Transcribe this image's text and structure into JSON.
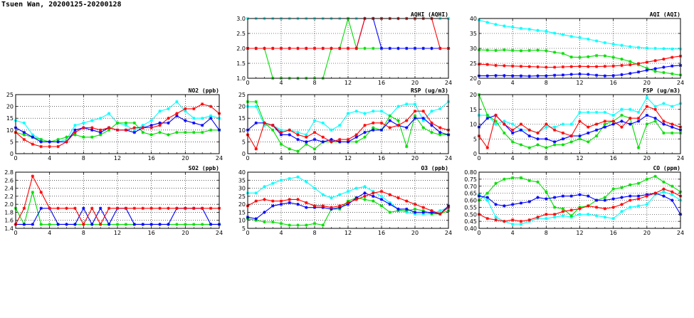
{
  "page": {
    "title": "Tsuen Wan, 20200125-20200128"
  },
  "colors": {
    "red": "#ff0000",
    "green": "#00dd00",
    "blue": "#0000ff",
    "cyan": "#00ffff"
  },
  "chart_data": [
    {
      "id": "aqhi",
      "type": "line",
      "title": "AQHI (AQHI)",
      "ylim": [
        1.0,
        3.0
      ],
      "yticks": [
        "1.0",
        "1.5",
        "2.0",
        "2.5",
        "3.0"
      ],
      "xticks": [
        "0",
        "4",
        "8",
        "12",
        "16",
        "20",
        "24"
      ],
      "grid": true,
      "series": [
        {
          "color": "#00ffff",
          "values": [
            3,
            3,
            3,
            3,
            3,
            3,
            3,
            3,
            3,
            3,
            3,
            3,
            3,
            3,
            3,
            3,
            3,
            3,
            3,
            3,
            3,
            3,
            3,
            3,
            3
          ]
        },
        {
          "color": "#00dd00",
          "values": [
            2,
            2,
            2,
            1,
            1,
            1,
            1,
            1,
            1,
            1,
            2,
            2,
            3,
            2,
            2,
            2,
            2,
            2,
            2,
            2,
            2,
            2,
            2,
            2,
            2
          ]
        },
        {
          "color": "#0000ff",
          "values": [
            2,
            2,
            2,
            2,
            2,
            2,
            2,
            2,
            2,
            2,
            2,
            2,
            2,
            2,
            3,
            3,
            2,
            2,
            2,
            2,
            2,
            2,
            2,
            2,
            2
          ]
        },
        {
          "color": "#ff0000",
          "values": [
            2,
            2,
            2,
            2,
            2,
            2,
            2,
            2,
            2,
            2,
            2,
            2,
            2,
            2,
            3,
            3,
            3,
            3,
            3,
            3,
            3,
            3,
            3,
            2,
            2
          ]
        }
      ]
    },
    {
      "id": "aqi",
      "type": "line",
      "title": "AQI (AQI)",
      "ylim": [
        20,
        40
      ],
      "yticks": [
        "20",
        "25",
        "30",
        "35",
        "40"
      ],
      "xticks": [
        "0",
        "4",
        "8",
        "12",
        "16",
        "20",
        "24"
      ],
      "grid": true,
      "series": [
        {
          "color": "#00ffff",
          "values": [
            39.5,
            38.7,
            38,
            37.5,
            37.1,
            36.7,
            36.4,
            36,
            35.7,
            35.1,
            34.6,
            34,
            33.6,
            33.1,
            32.5,
            31.9,
            31.4,
            31,
            30.6,
            30.3,
            30.1,
            30,
            29.9,
            29.8,
            29.8
          ]
        },
        {
          "color": "#00dd00",
          "values": [
            29.5,
            29.4,
            29.3,
            29.5,
            29.3,
            29.2,
            29.3,
            29.4,
            29.2,
            28.7,
            28.3,
            27.1,
            27,
            27.2,
            27.6,
            27.5,
            27,
            26.4,
            25.6,
            24.5,
            23.4,
            22.3,
            21.9,
            21.5,
            21.1
          ]
        },
        {
          "color": "#0000ff",
          "values": [
            20.8,
            20.8,
            20.9,
            20.9,
            20.8,
            20.8,
            20.7,
            20.8,
            20.8,
            21,
            21.1,
            21.3,
            21.4,
            21.3,
            21,
            20.8,
            20.9,
            21.2,
            21.6,
            22.1,
            22.7,
            23.2,
            23.7,
            24.1,
            24.3
          ]
        },
        {
          "color": "#ff0000",
          "values": [
            24.7,
            24.6,
            24.3,
            24.2,
            24.1,
            24,
            23.9,
            23.8,
            23.7,
            23.7,
            23.8,
            23.9,
            24,
            23.9,
            23.9,
            24,
            24.1,
            24.3,
            24.5,
            24.9,
            25.4,
            25.9,
            26.4,
            27,
            27.4
          ]
        }
      ]
    },
    {
      "id": "no2",
      "type": "line",
      "title": "NO2 (ppb)",
      "ylim": [
        0,
        25
      ],
      "yticks": [
        "0",
        "5",
        "10",
        "15",
        "20",
        "25"
      ],
      "xticks": [
        "0",
        "4",
        "8",
        "12",
        "16",
        "20",
        "24"
      ],
      "grid": true,
      "series": [
        {
          "color": "#00ffff",
          "values": [
            14,
            13,
            8,
            6,
            5,
            5,
            6,
            12,
            13,
            14,
            15,
            17,
            13,
            12,
            10,
            12,
            14,
            18,
            19,
            22,
            18,
            15,
            15,
            16,
            15
          ]
        },
        {
          "color": "#00dd00",
          "values": [
            9,
            8,
            7,
            6,
            5,
            6,
            7,
            8,
            7,
            7,
            8,
            10,
            13,
            13,
            13,
            9,
            8,
            9,
            8,
            9,
            9,
            9,
            9,
            10,
            10
          ]
        },
        {
          "color": "#0000ff",
          "values": [
            11,
            9,
            7,
            5,
            5,
            5,
            5,
            10,
            11,
            10,
            9,
            11,
            10,
            10,
            9,
            11,
            12,
            13,
            13,
            16,
            14,
            13,
            12,
            15,
            10
          ]
        },
        {
          "color": "#ff0000",
          "values": [
            9,
            6,
            4,
            3,
            3,
            3,
            5,
            9,
            11,
            11,
            10,
            11,
            10,
            10,
            11,
            11,
            11,
            12,
            15,
            17,
            19,
            19,
            21,
            20,
            17
          ]
        }
      ]
    },
    {
      "id": "rsp",
      "type": "line",
      "title": "RSP (ug/m3)",
      "ylim": [
        0,
        25
      ],
      "yticks": [
        "0",
        "5",
        "10",
        "15",
        "20",
        "25"
      ],
      "xticks": [
        "0",
        "4",
        "8",
        "12",
        "16",
        "20",
        "24"
      ],
      "grid": true,
      "series": [
        {
          "color": "#00ffff",
          "values": [
            20,
            20,
            12,
            12,
            10,
            10,
            9,
            8,
            14,
            13,
            10,
            12,
            17,
            18,
            17,
            18,
            18,
            16,
            20,
            21,
            21,
            14,
            18,
            19,
            22
          ]
        },
        {
          "color": "#00dd00",
          "values": [
            22,
            22,
            13,
            10,
            4,
            2,
            1,
            4,
            2,
            5,
            5,
            5,
            5,
            5,
            7,
            11,
            10,
            16,
            14,
            3,
            16,
            11,
            9,
            8,
            8
          ]
        },
        {
          "color": "#0000ff",
          "values": [
            10,
            13,
            13,
            12,
            8,
            8,
            6,
            5,
            6,
            5,
            6,
            5,
            5,
            7,
            9,
            10,
            10,
            14,
            12,
            11,
            15,
            15,
            12,
            9,
            8
          ]
        },
        {
          "color": "#ff0000",
          "values": [
            8,
            2,
            13,
            12,
            9,
            10,
            8,
            7,
            9,
            7,
            5,
            6,
            6,
            8,
            12,
            13,
            13,
            11,
            12,
            14,
            18,
            18,
            13,
            11,
            10
          ]
        }
      ]
    },
    {
      "id": "fsp",
      "type": "line",
      "title": "FSP (ug/m3)",
      "ylim": [
        0,
        20
      ],
      "yticks": [
        "0",
        "5",
        "10",
        "15",
        "20"
      ],
      "xticks": [
        "0",
        "4",
        "8",
        "12",
        "16",
        "20",
        "24"
      ],
      "grid": true,
      "series": [
        {
          "color": "#00ffff",
          "values": [
            13,
            13,
            10,
            11,
            10,
            8,
            8,
            7,
            9,
            9,
            10,
            10,
            14,
            14,
            14,
            14,
            13,
            15,
            15,
            14,
            19,
            16,
            17,
            16,
            17
          ]
        },
        {
          "color": "#00dd00",
          "values": [
            20,
            13,
            11,
            7,
            4,
            3,
            2,
            3,
            2,
            3,
            3,
            4,
            5,
            4,
            6,
            10,
            11,
            13,
            12,
            2,
            10,
            11,
            7,
            7,
            7
          ]
        },
        {
          "color": "#0000ff",
          "values": [
            9,
            12,
            13,
            10,
            7,
            8,
            6,
            5,
            5,
            4,
            5,
            6,
            6,
            7,
            8,
            9,
            10,
            11,
            10,
            11,
            13,
            12,
            10,
            9,
            8
          ]
        },
        {
          "color": "#ff0000",
          "values": [
            6,
            2,
            13,
            10,
            8,
            10,
            8,
            7,
            10,
            8,
            7,
            6,
            11,
            9,
            10,
            11,
            11,
            9,
            12,
            12,
            16,
            15,
            11,
            10,
            9
          ]
        }
      ]
    },
    {
      "id": "so2",
      "type": "line",
      "title": "SO2 (ppb)",
      "ylim": [
        1.4,
        2.8
      ],
      "yticks": [
        "1.4",
        "1.6",
        "1.8",
        "2.0",
        "2.2",
        "2.4",
        "2.6",
        "2.8"
      ],
      "xticks": [
        "0",
        "4",
        "8",
        "12",
        "16",
        "20",
        "24"
      ],
      "grid": true,
      "series": [
        {
          "color": "#00dd00",
          "values": [
            1.9,
            1.5,
            2.3,
            1.5,
            1.5,
            1.5,
            1.5,
            1.5,
            1.5,
            1.5,
            1.5,
            1.5,
            1.5,
            1.5,
            1.5,
            1.5,
            1.5,
            1.5,
            1.5,
            1.5,
            1.5,
            1.5,
            1.5,
            1.5,
            1.5
          ]
        },
        {
          "color": "#0000ff",
          "values": [
            1.5,
            1.5,
            1.5,
            1.9,
            1.9,
            1.5,
            1.5,
            1.5,
            1.9,
            1.5,
            1.9,
            1.5,
            1.9,
            1.9,
            1.5,
            1.5,
            1.5,
            1.5,
            1.5,
            1.9,
            1.9,
            1.9,
            1.9,
            1.5,
            1.5
          ]
        },
        {
          "color": "#ff0000",
          "values": [
            1.5,
            1.9,
            2.7,
            2.3,
            1.9,
            1.9,
            1.9,
            1.9,
            1.5,
            1.9,
            1.5,
            1.9,
            1.9,
            1.9,
            1.9,
            1.9,
            1.9,
            1.9,
            1.9,
            1.9,
            1.9,
            1.9,
            1.9,
            1.9,
            1.9
          ]
        }
      ]
    },
    {
      "id": "o3",
      "type": "line",
      "title": "O3 (ppb)",
      "ylim": [
        5,
        40
      ],
      "yticks": [
        "5",
        "10",
        "15",
        "20",
        "25",
        "30",
        "35",
        "40"
      ],
      "xticks": [
        "0",
        "4",
        "8",
        "12",
        "16",
        "20",
        "24"
      ],
      "grid": true,
      "series": [
        {
          "color": "#00ffff",
          "values": [
            27,
            27,
            31,
            33,
            35,
            36,
            37,
            34,
            30,
            26,
            24,
            26,
            28,
            30,
            31,
            28,
            25,
            21,
            17,
            15,
            14,
            14,
            14,
            16,
            18
          ]
        },
        {
          "color": "#00dd00",
          "values": [
            11,
            10,
            9,
            9,
            8,
            7,
            7,
            7,
            8,
            7,
            17,
            17,
            22,
            24,
            23,
            22,
            19,
            15,
            16,
            16,
            17,
            16,
            14,
            14,
            16
          ]
        },
        {
          "color": "#0000ff",
          "values": [
            12,
            11,
            15,
            19,
            20,
            21,
            20,
            18,
            18,
            18,
            17,
            18,
            20,
            24,
            27,
            25,
            23,
            20,
            17,
            17,
            15,
            15,
            15,
            14,
            19
          ]
        },
        {
          "color": "#ff0000",
          "values": [
            19,
            22,
            23,
            22,
            22,
            23,
            23,
            21,
            19,
            19,
            18,
            19,
            21,
            23,
            25,
            27,
            28,
            26,
            24,
            22,
            20,
            18,
            16,
            14,
            18
          ]
        }
      ]
    },
    {
      "id": "co",
      "type": "line",
      "title": "CO (ppm)",
      "ylim": [
        0.4,
        0.8
      ],
      "yticks": [
        "0.40",
        "0.45",
        "0.50",
        "0.55",
        "0.60",
        "0.65",
        "0.70",
        "0.75",
        "0.80"
      ],
      "xticks": [
        "0",
        "4",
        "8",
        "12",
        "16",
        "20",
        "24"
      ],
      "grid": true,
      "series": [
        {
          "color": "#00ffff",
          "values": [
            0.64,
            0.6,
            0.48,
            0.45,
            0.43,
            0.43,
            0.45,
            0.47,
            0.47,
            0.48,
            0.49,
            0.48,
            0.5,
            0.5,
            0.49,
            0.48,
            0.47,
            0.52,
            0.55,
            0.56,
            0.57,
            0.64,
            0.66,
            0.64,
            0.6
          ]
        },
        {
          "color": "#00dd00",
          "values": [
            0.6,
            0.65,
            0.72,
            0.75,
            0.76,
            0.76,
            0.74,
            0.73,
            0.66,
            0.55,
            0.54,
            0.49,
            0.55,
            0.56,
            0.6,
            0.62,
            0.68,
            0.69,
            0.71,
            0.72,
            0.75,
            0.77,
            0.73,
            0.7,
            0.66
          ]
        },
        {
          "color": "#0000ff",
          "values": [
            0.63,
            0.62,
            0.57,
            0.56,
            0.57,
            0.58,
            0.59,
            0.62,
            0.61,
            0.62,
            0.63,
            0.63,
            0.64,
            0.63,
            0.6,
            0.6,
            0.61,
            0.62,
            0.63,
            0.63,
            0.64,
            0.65,
            0.63,
            0.6,
            0.5
          ]
        },
        {
          "color": "#ff0000",
          "values": [
            0.5,
            0.47,
            0.46,
            0.45,
            0.46,
            0.45,
            0.46,
            0.48,
            0.5,
            0.5,
            0.52,
            0.53,
            0.54,
            0.56,
            0.55,
            0.54,
            0.55,
            0.57,
            0.6,
            0.61,
            0.63,
            0.65,
            0.68,
            0.66,
            0.63
          ]
        }
      ]
    }
  ]
}
